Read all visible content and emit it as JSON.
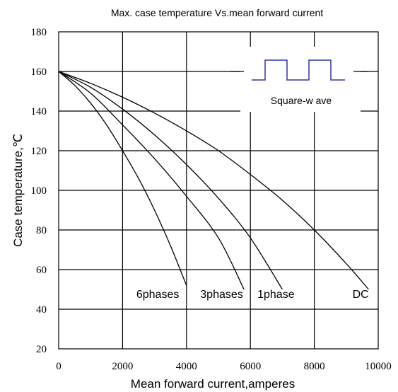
{
  "chart_data": {
    "type": "line",
    "title": "Max. case temperature  Vs.mean  forward  current",
    "xlabel": "Mean forward  current,amperes",
    "ylabel": "Case temperature,℃",
    "xlim": [
      0,
      10000
    ],
    "ylim": [
      20,
      180
    ],
    "x_ticks": [
      "0",
      "2000",
      "4000",
      "6000",
      "8000",
      "10000"
    ],
    "y_ticks": [
      "20",
      "40",
      "60",
      "80",
      "100",
      "120",
      "140",
      "160",
      "180"
    ],
    "grid": true,
    "series": [
      {
        "name": "6phases",
        "x": [
          0,
          500,
          1000,
          1500,
          2000,
          2500,
          3000,
          3500,
          4000
        ],
        "y": [
          160,
          153,
          144,
          133,
          120,
          106,
          90,
          72,
          52
        ],
        "label_text": "6phases",
        "label_x": 3100,
        "label_y": 45
      },
      {
        "name": "3phases",
        "x": [
          0,
          1000,
          2000,
          3000,
          4000,
          5000,
          5800
        ],
        "y": [
          160,
          149,
          133,
          116,
          97,
          76,
          50
        ],
        "label_text": "3phases",
        "label_x": 5100,
        "label_y": 45
      },
      {
        "name": "1phase",
        "x": [
          0,
          1000,
          2000,
          3000,
          4000,
          5000,
          6000,
          7000
        ],
        "y": [
          160,
          152,
          141,
          128,
          113,
          96,
          76,
          50
        ],
        "label_text": "1phase",
        "label_x": 6800,
        "label_y": 45
      },
      {
        "name": "DC",
        "x": [
          0,
          1000,
          2000,
          3000,
          4000,
          5000,
          6000,
          7000,
          8000,
          9000,
          9700
        ],
        "y": [
          160,
          154,
          147,
          139,
          130,
          120,
          108,
          95,
          80,
          63,
          50
        ],
        "label_text": "DC",
        "label_x": 9450,
        "label_y": 45
      }
    ],
    "inset": {
      "label": "Square-w ave",
      "waveform": "square",
      "color": "#3333aa"
    },
    "line_color": "#000000",
    "grid_color": "#000000"
  }
}
